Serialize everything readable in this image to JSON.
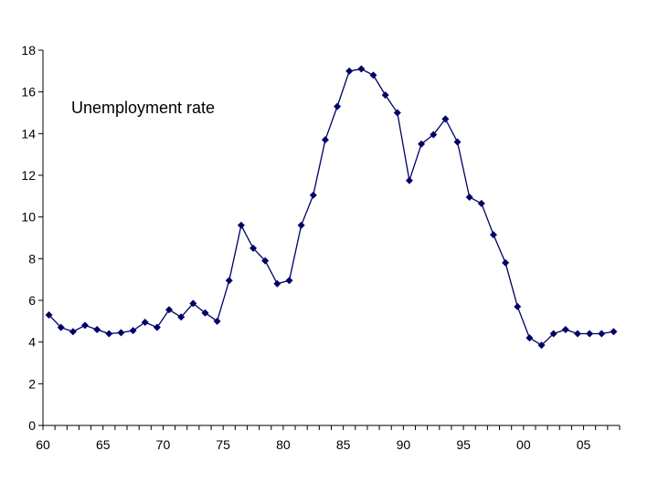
{
  "chart_data": {
    "type": "line",
    "title": "",
    "xlabel": "",
    "ylabel": "",
    "annotation": "Unemployment rate",
    "x_ticks": [
      "60",
      "65",
      "70",
      "75",
      "80",
      "85",
      "90",
      "95",
      "00",
      "05"
    ],
    "x_tick_years": [
      1960,
      1965,
      1970,
      1975,
      1980,
      1985,
      1990,
      1995,
      2000,
      2005
    ],
    "y_ticks": [
      0,
      2,
      4,
      6,
      8,
      10,
      12,
      14,
      16,
      18
    ],
    "xlim": [
      1960,
      2007
    ],
    "ylim": [
      0,
      18
    ],
    "grid": false,
    "legend": "none",
    "series_color": "#000066",
    "series": [
      {
        "name": "Unemployment rate",
        "x": [
          1960,
          1961,
          1962,
          1963,
          1964,
          1965,
          1966,
          1967,
          1968,
          1969,
          1970,
          1971,
          1972,
          1973,
          1974,
          1975,
          1976,
          1977,
          1978,
          1979,
          1980,
          1981,
          1982,
          1983,
          1984,
          1985,
          1986,
          1987,
          1988,
          1989,
          1990,
          1991,
          1992,
          1993,
          1994,
          1995,
          1996,
          1997,
          1998,
          1999,
          2000,
          2001,
          2002,
          2003,
          2004,
          2005,
          2006,
          2007
        ],
        "values": [
          5.3,
          4.7,
          4.5,
          4.8,
          4.6,
          4.4,
          4.45,
          4.55,
          4.95,
          4.7,
          5.55,
          5.2,
          5.85,
          5.4,
          5.0,
          6.95,
          9.6,
          8.5,
          7.9,
          6.8,
          6.95,
          9.6,
          11.05,
          13.7,
          15.3,
          17.0,
          17.1,
          16.8,
          15.85,
          15.0,
          11.75,
          13.5,
          13.95,
          14.7,
          13.6,
          10.95,
          10.65,
          9.15,
          7.8,
          5.7,
          4.2,
          3.85,
          4.4,
          4.6,
          4.4,
          4.4,
          4.4,
          4.5
        ]
      }
    ]
  }
}
